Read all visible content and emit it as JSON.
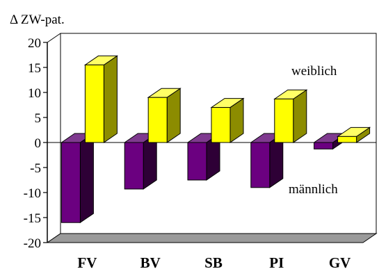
{
  "chart_data": {
    "type": "bar",
    "ylabel": "Δ ZW-pat.",
    "ylim": [
      -20,
      20
    ],
    "yticks": [
      20,
      15,
      10,
      5,
      0,
      -5,
      -10,
      -15,
      -20
    ],
    "categories": [
      "FV",
      "BV",
      "SB",
      "PI",
      "GV"
    ],
    "series": [
      {
        "name": "männlich",
        "values": [
          -16,
          -9.3,
          -7.5,
          -9,
          -1.3
        ]
      },
      {
        "name": "weiblich",
        "values": [
          15.5,
          9,
          7,
          8.7,
          1.2
        ]
      }
    ],
    "annotations": [
      "weiblich",
      "männlich"
    ],
    "grid": false,
    "chart_style": "3d",
    "colors": {
      "male_front": "#6b0080",
      "male_top": "#7f3a8f",
      "male_side": "#2e0036",
      "female_front": "#ffff00",
      "female_top": "#ffff66",
      "female_side": "#8c8c00",
      "floor": "#9a9a9a"
    }
  }
}
